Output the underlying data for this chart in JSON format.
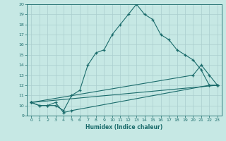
{
  "xlabel": "Humidex (Indice chaleur)",
  "bg_color": "#c6e8e4",
  "grid_color": "#aacece",
  "line_color": "#1a6b6b",
  "xlim": [
    -0.5,
    23.5
  ],
  "ylim": [
    9,
    20
  ],
  "xticks": [
    0,
    1,
    2,
    3,
    4,
    5,
    6,
    7,
    8,
    9,
    10,
    11,
    12,
    13,
    14,
    15,
    16,
    17,
    18,
    19,
    20,
    21,
    22,
    23
  ],
  "yticks": [
    9,
    10,
    11,
    12,
    13,
    14,
    15,
    16,
    17,
    18,
    19,
    20
  ],
  "line1_x": [
    0,
    1,
    2,
    3,
    4,
    5,
    6,
    7,
    8,
    9,
    10,
    11,
    12,
    13,
    14,
    15,
    16,
    17,
    18,
    19,
    20,
    21,
    22,
    23
  ],
  "line1_y": [
    10.3,
    10.0,
    10.0,
    10.0,
    9.5,
    11.0,
    11.5,
    14.0,
    15.2,
    15.5,
    17.0,
    18.0,
    19.0,
    20.0,
    19.0,
    18.5,
    17.0,
    16.5,
    15.5,
    15.0,
    14.5,
    13.5,
    12.0,
    12.0
  ],
  "line2_x": [
    0,
    1,
    2,
    3,
    4,
    5,
    22,
    23
  ],
  "line2_y": [
    10.3,
    10.0,
    10.0,
    10.3,
    9.3,
    9.5,
    12.0,
    12.0
  ],
  "line3_x": [
    0,
    23
  ],
  "line3_y": [
    10.3,
    12.0
  ],
  "line4_x": [
    0,
    20,
    21,
    22,
    23
  ],
  "line4_y": [
    10.3,
    13.0,
    14.0,
    13.0,
    12.0
  ]
}
